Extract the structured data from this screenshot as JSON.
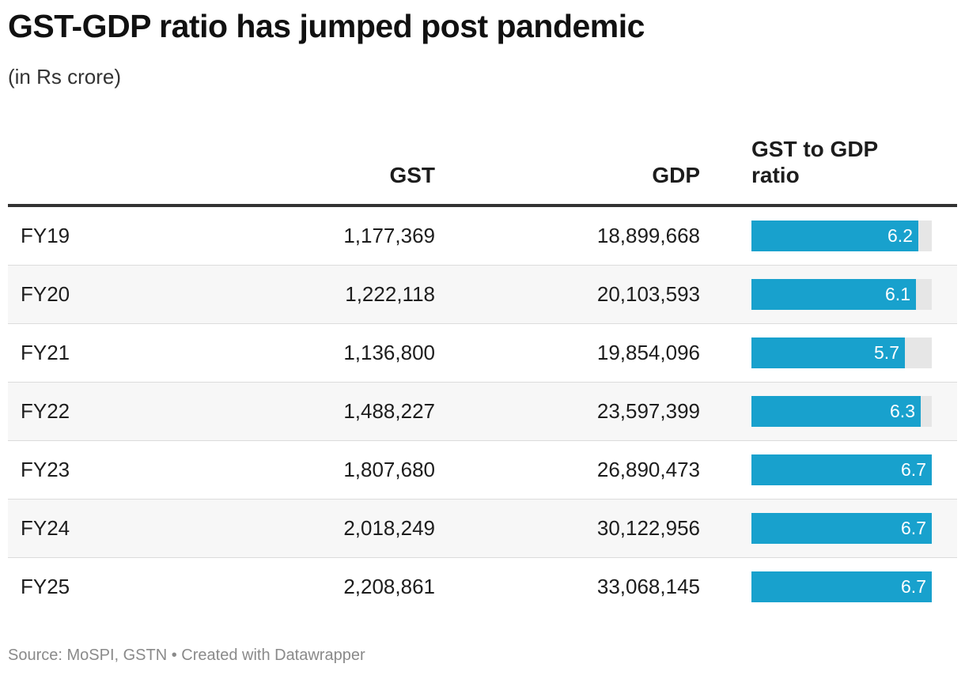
{
  "title": "GST-GDP ratio has jumped post pandemic",
  "subtitle": "(in Rs crore)",
  "columns": {
    "year": "",
    "gst": "GST",
    "gdp": "GDP",
    "ratio": "GST to GDP ratio"
  },
  "footer": "Source: MoSPI, GSTN • Created with Datawrapper",
  "colors": {
    "bar": "#18a1cd",
    "track": "#e6e6e6"
  },
  "chart_data": {
    "type": "table",
    "title": "GST-GDP ratio has jumped post pandemic",
    "subtitle": "(in Rs crore)",
    "bar_column": "GST to GDP ratio",
    "bar_max": 6.7,
    "rows": [
      {
        "year": "FY19",
        "gst": "1,177,369",
        "gdp": "18,899,668",
        "ratio": 6.2,
        "ratio_label": "6.2"
      },
      {
        "year": "FY20",
        "gst": "1,222,118",
        "gdp": "20,103,593",
        "ratio": 6.1,
        "ratio_label": "6.1"
      },
      {
        "year": "FY21",
        "gst": "1,136,800",
        "gdp": "19,854,096",
        "ratio": 5.7,
        "ratio_label": "5.7"
      },
      {
        "year": "FY22",
        "gst": "1,488,227",
        "gdp": "23,597,399",
        "ratio": 6.3,
        "ratio_label": "6.3"
      },
      {
        "year": "FY23",
        "gst": "1,807,680",
        "gdp": "26,890,473",
        "ratio": 6.7,
        "ratio_label": "6.7"
      },
      {
        "year": "FY24",
        "gst": "2,018,249",
        "gdp": "30,122,956",
        "ratio": 6.7,
        "ratio_label": "6.7"
      },
      {
        "year": "FY25",
        "gst": "2,208,861",
        "gdp": "33,068,145",
        "ratio": 6.7,
        "ratio_label": "6.7"
      }
    ]
  }
}
